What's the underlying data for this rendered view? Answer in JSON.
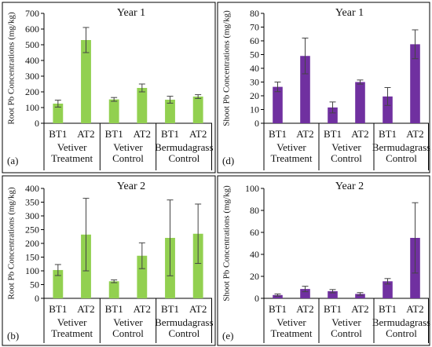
{
  "chart_data": [
    {
      "type": "bar",
      "panel_label": "(a)",
      "title": "Year 1",
      "ylabel": "Root Pb Concentrations (mg/kg)",
      "ylim": [
        0,
        700
      ],
      "yticks": [
        0,
        100,
        200,
        300,
        400,
        500,
        600,
        700
      ],
      "categories": [
        "BT1",
        "AT2",
        "BT1",
        "AT2",
        "BT1",
        "AT2"
      ],
      "groups": [
        {
          "line1": "Vetiver",
          "line2": "Treatment"
        },
        {
          "line1": "Vetiver",
          "line2": "Control"
        },
        {
          "line1": "Bermudagrass",
          "line2": "Control"
        }
      ],
      "values": [
        125,
        530,
        152,
        225,
        150,
        170
      ],
      "errors": [
        22,
        80,
        12,
        25,
        22,
        12
      ],
      "color": "#92d050"
    },
    {
      "type": "bar",
      "panel_label": "(d)",
      "title": "Year 1",
      "ylabel": "Shoot Pb Concentrations (mg/kg)",
      "ylim": [
        0,
        80
      ],
      "yticks": [
        0,
        10,
        20,
        30,
        40,
        50,
        60,
        70,
        80
      ],
      "categories": [
        "BT1",
        "AT2",
        "BT1",
        "AT2",
        "BT1",
        "AT2"
      ],
      "groups": [
        {
          "line1": "Vetiver",
          "line2": "Treatment"
        },
        {
          "line1": "Vetiver",
          "line2": "Control"
        },
        {
          "line1": "Bermudagrass",
          "line2": "Control"
        }
      ],
      "values": [
        26.5,
        49,
        11.5,
        30,
        19.5,
        57.5
      ],
      "errors": [
        3.5,
        13,
        4,
        1.5,
        6.5,
        10.5
      ],
      "color": "#7030a0"
    },
    {
      "type": "bar",
      "panel_label": "(b)",
      "title": "Year 2",
      "ylabel": "Root Pb Concentrations (mg/kg)",
      "ylim": [
        0,
        400
      ],
      "yticks": [
        0,
        50,
        100,
        150,
        200,
        250,
        300,
        350,
        400
      ],
      "categories": [
        "BT1",
        "AT2",
        "BT1",
        "AT2",
        "BT1",
        "AT2"
      ],
      "groups": [
        {
          "line1": "Vetiver",
          "line2": "Treatment"
        },
        {
          "line1": "Vetiver",
          "line2": "Control"
        },
        {
          "line1": "Bermudagrass",
          "line2": "Control"
        }
      ],
      "values": [
        103,
        232,
        62,
        155,
        220,
        235
      ],
      "errors": [
        20,
        132,
        5,
        47,
        138,
        108
      ],
      "color": "#92d050"
    },
    {
      "type": "bar",
      "panel_label": "(e)",
      "title": "Year 2",
      "ylabel": "Shoot Pb Concentrations (mg/kg)",
      "ylim": [
        0,
        100
      ],
      "yticks": [
        0,
        20,
        40,
        60,
        80,
        100
      ],
      "categories": [
        "BT1",
        "AT2",
        "BT1",
        "AT2",
        "BT1",
        "AT2"
      ],
      "groups": [
        {
          "line1": "Vetiver",
          "line2": "Treatment"
        },
        {
          "line1": "Vetiver",
          "line2": "Control"
        },
        {
          "line1": "Bermudagrass",
          "line2": "Control"
        }
      ],
      "values": [
        3,
        8.5,
        6.5,
        4,
        15.5,
        55
      ],
      "errors": [
        1,
        2.5,
        1.5,
        1.2,
        2.5,
        32
      ],
      "color": "#7030a0"
    }
  ]
}
